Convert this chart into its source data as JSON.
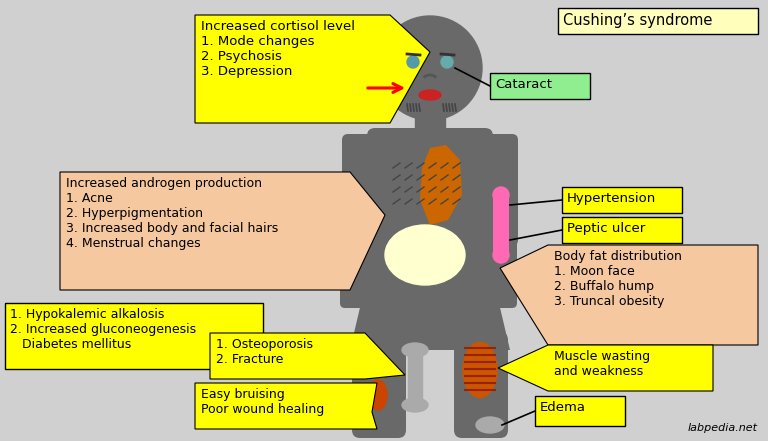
{
  "bg_color": "#d0d0d0",
  "body_color": "#696969",
  "yellow": "#ffff00",
  "light_green": "#90ee90",
  "light_orange": "#f5c8a0",
  "labels": {
    "cushing": "Cushing’s syndrome",
    "cortisol": "Increased cortisol level\n1. Mode changes\n2. Psychosis\n3. Depression",
    "cataract": "Cataract",
    "androgen": "Increased androgen production\n1. Acne\n2. Hyperpigmentation\n3. Increased body and facial hairs\n4. Menstrual changes",
    "hypertension": "Hypertension",
    "peptic": "Peptic ulcer",
    "body_fat": "Body fat distribution\n1. Moon face\n2. Buffalo hump\n3. Truncal obesity",
    "hypokalemic": "1. Hypokalemic alkalosis\n2. Increased gluconeogenesis\n   Diabetes mellitus",
    "osteo": "1. Osteoporosis\n2. Fracture",
    "muscle": "Muscle wasting\nand weakness",
    "bruising": "Easy bruising\nPoor wound healing",
    "edema": "Edema"
  },
  "watermark": "labpedia.net"
}
